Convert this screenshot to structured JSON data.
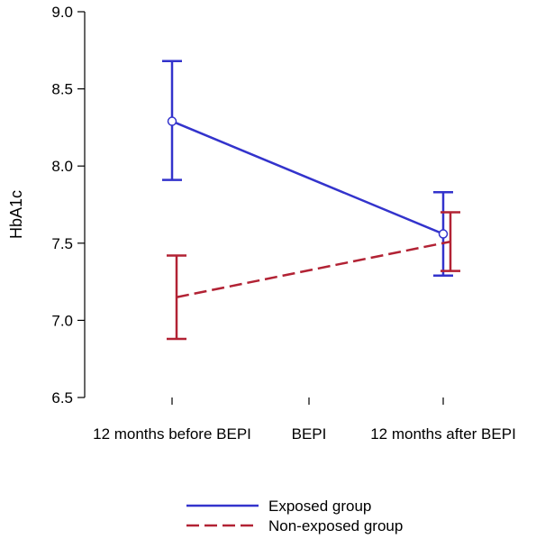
{
  "chart_data": {
    "type": "line",
    "title": "",
    "xlabel": "",
    "ylabel": "HbA1c",
    "ylim": [
      6.5,
      9.0
    ],
    "yticks": [
      "6.5",
      "7.0",
      "7.5",
      "8.0",
      "8.5",
      "9.0"
    ],
    "categories": [
      "12 months before BEPI",
      "BEPI",
      "12 months after BEPI"
    ],
    "grid": false,
    "legend": "bottom",
    "series": [
      {
        "name": "Exposed group",
        "color": "#3333cc",
        "style": "solid",
        "marker": "circle",
        "points": [
          {
            "category": "12 months before BEPI",
            "y": 8.29,
            "lower": 7.91,
            "upper": 8.68
          },
          {
            "category": "12 months after BEPI",
            "y": 7.56,
            "lower": 7.29,
            "upper": 7.83
          }
        ]
      },
      {
        "name": "Non-exposed group",
        "color": "#b22234",
        "style": "dashed",
        "marker": "none",
        "points": [
          {
            "category": "12 months before BEPI",
            "y": 7.15,
            "lower": 6.88,
            "upper": 7.42
          },
          {
            "category": "12 months after BEPI",
            "y": 7.51,
            "lower": 7.32,
            "upper": 7.7
          }
        ]
      }
    ]
  }
}
